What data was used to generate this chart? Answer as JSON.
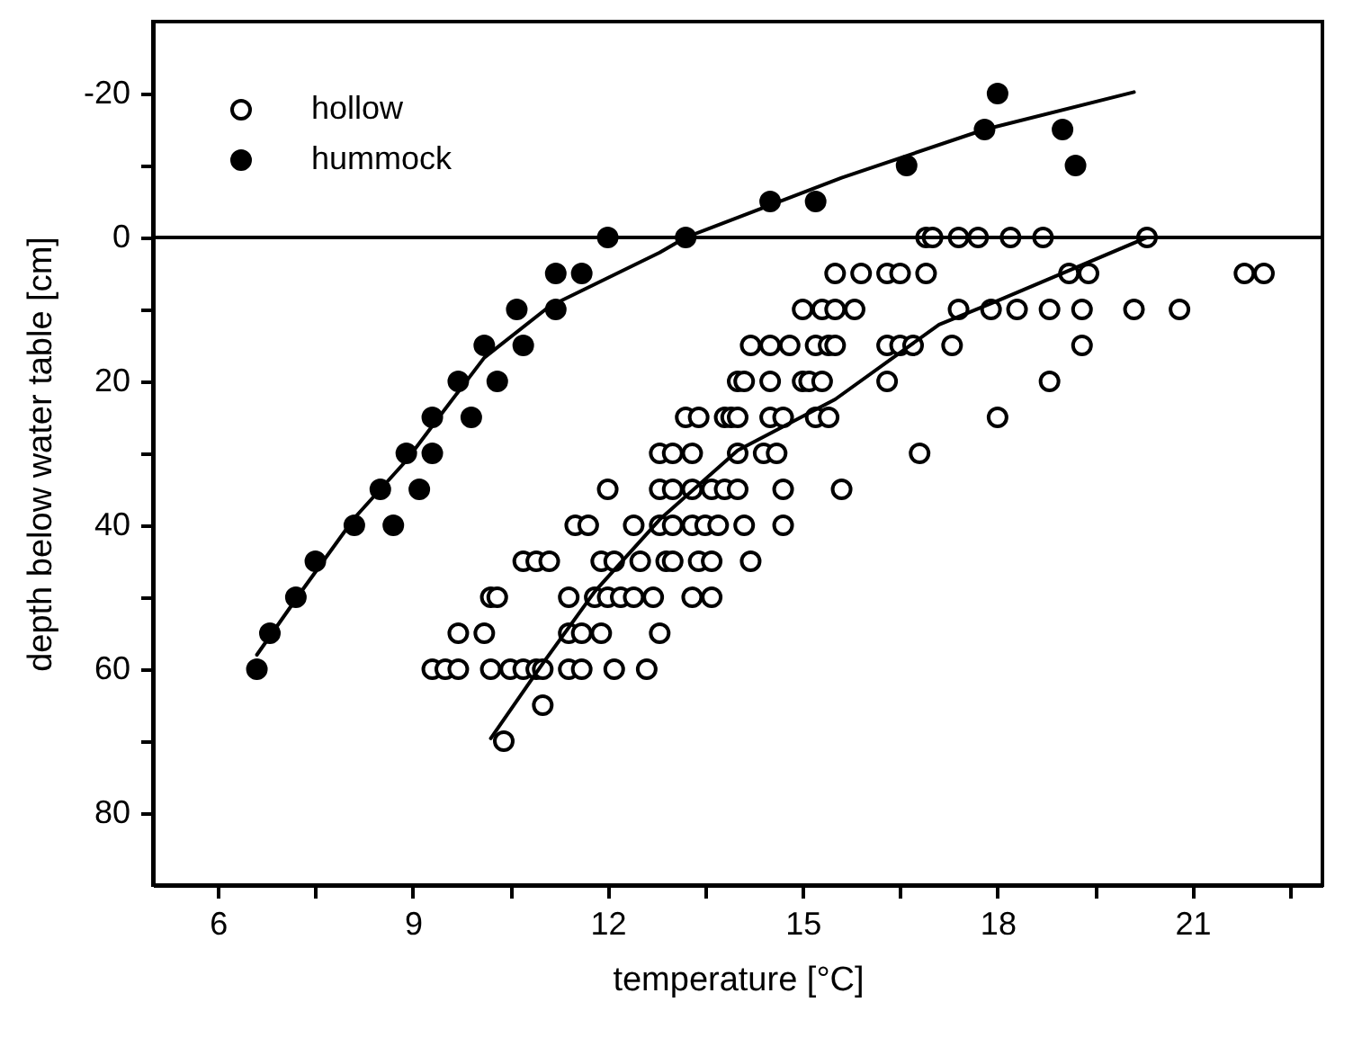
{
  "chart_data": {
    "type": "scatter",
    "xlabel": "temperature [°C]",
    "ylabel": "depth below water table [cm]",
    "xlim": [
      5,
      23
    ],
    "ylim": [
      90,
      -30
    ],
    "xticks": [
      6,
      {
        "value": 7.5,
        "label": null
      },
      9,
      {
        "value": 10.5,
        "label": null
      },
      12,
      {
        "value": 13.5,
        "label": null
      },
      15,
      {
        "value": 16.5,
        "label": null
      },
      18,
      {
        "value": 19.5,
        "label": null
      },
      21,
      {
        "value": 22.5,
        "label": null
      }
    ],
    "yticks": [
      -20,
      {
        "value": -10,
        "label": null
      },
      0,
      {
        "value": 10,
        "label": null
      },
      20,
      {
        "value": 30,
        "label": null
      },
      40,
      {
        "value": 50,
        "label": null
      },
      60,
      {
        "value": 70,
        "label": null
      },
      80
    ],
    "grid": false,
    "legend": "top left",
    "ref_lines": [
      {
        "axis": "y",
        "value": 0
      }
    ],
    "series": [
      {
        "name": "hollow",
        "color": "#ffffff",
        "marker": "circle",
        "x": [
          16.9,
          17.0,
          17.4,
          17.7,
          18.2,
          18.7,
          20.3,
          15.5,
          15.9,
          16.3,
          16.5,
          16.9,
          19.1,
          19.4,
          21.8,
          22.1,
          15.0,
          15.3,
          15.5,
          15.8,
          17.4,
          17.9,
          18.3,
          18.8,
          19.3,
          20.1,
          20.8,
          14.2,
          14.5,
          14.8,
          15.2,
          15.4,
          15.5,
          16.3,
          16.5,
          16.7,
          17.3,
          19.3,
          14.0,
          14.1,
          14.5,
          15.0,
          15.1,
          15.3,
          16.3,
          18.8,
          13.2,
          13.4,
          13.8,
          13.9,
          14.0,
          14.5,
          14.7,
          15.2,
          15.4,
          18.0,
          12.8,
          13.0,
          13.3,
          14.0,
          14.4,
          14.6,
          16.8,
          12.0,
          12.8,
          13.0,
          13.3,
          13.6,
          13.8,
          14.0,
          14.7,
          15.6,
          11.5,
          11.7,
          12.4,
          12.8,
          13.0,
          13.3,
          13.5,
          13.7,
          14.1,
          14.7,
          10.7,
          10.9,
          11.1,
          11.9,
          12.1,
          12.5,
          12.9,
          13.0,
          13.4,
          13.6,
          14.2,
          10.2,
          10.3,
          11.4,
          11.8,
          12.0,
          12.2,
          12.4,
          12.7,
          13.3,
          13.6,
          9.7,
          10.1,
          11.4,
          11.6,
          11.9,
          12.8,
          9.3,
          9.5,
          9.7,
          10.2,
          10.5,
          10.7,
          10.9,
          11.0,
          11.4,
          11.6,
          12.1,
          12.6,
          11.0,
          10.4
        ],
        "values": [
          0,
          0,
          0,
          0,
          0,
          0,
          0,
          5,
          5,
          5,
          5,
          5,
          5,
          5,
          5,
          5,
          10,
          10,
          10,
          10,
          10,
          10,
          10,
          10,
          10,
          10,
          10,
          15,
          15,
          15,
          15,
          15,
          15,
          15,
          15,
          15,
          15,
          15,
          20,
          20,
          20,
          20,
          20,
          20,
          20,
          20,
          25,
          25,
          25,
          25,
          25,
          25,
          25,
          25,
          25,
          25,
          30,
          30,
          30,
          30,
          30,
          30,
          30,
          35,
          35,
          35,
          35,
          35,
          35,
          35,
          35,
          35,
          40,
          40,
          40,
          40,
          40,
          40,
          40,
          40,
          40,
          40,
          45,
          45,
          45,
          45,
          45,
          45,
          45,
          45,
          45,
          45,
          45,
          50,
          50,
          50,
          50,
          50,
          50,
          50,
          50,
          50,
          50,
          55,
          55,
          55,
          55,
          55,
          55,
          60,
          60,
          60,
          60,
          60,
          60,
          60,
          60,
          60,
          60,
          60,
          60,
          65,
          70
        ]
      },
      {
        "name": "hummock",
        "color": "#000000",
        "marker": "circle",
        "x": [
          12.0,
          13.2,
          14.5,
          15.2,
          11.2,
          11.6,
          10.6,
          11.2,
          10.1,
          10.7,
          9.7,
          10.3,
          9.3,
          9.9,
          8.9,
          9.3,
          8.5,
          9.1,
          8.1,
          8.7,
          7.5,
          7.2,
          6.8,
          6.6,
          16.6,
          17.8,
          18.0,
          19.0,
          19.2
        ],
        "values": [
          0,
          0,
          -5,
          -5,
          5,
          5,
          10,
          10,
          15,
          15,
          20,
          20,
          25,
          25,
          30,
          30,
          35,
          35,
          40,
          40,
          45,
          50,
          55,
          60,
          -10,
          -15,
          -20,
          -15,
          -10
        ]
      },
      {
        "type": "line",
        "color": "#000000",
        "marker": "none",
        "x": [
          6.6,
          7.3,
          8.1,
          8.9,
          9.4,
          10.1,
          11.1,
          12.8,
          13.2,
          15.6,
          17.8,
          20.1
        ],
        "values": [
          58,
          49,
          39,
          31,
          25,
          16.7,
          9.6,
          2.1,
          0,
          -8.3,
          -15,
          -20.2
        ]
      },
      {
        "type": "line",
        "color": "#000000",
        "marker": "none",
        "x": [
          10.2,
          11.0,
          11.8,
          12.8,
          14.0,
          15.5,
          17.1,
          18.0,
          20.3
        ],
        "values": [
          69.6,
          59.2,
          49.2,
          39.2,
          29.6,
          22.5,
          12.1,
          8.8,
          0
        ]
      }
    ]
  }
}
